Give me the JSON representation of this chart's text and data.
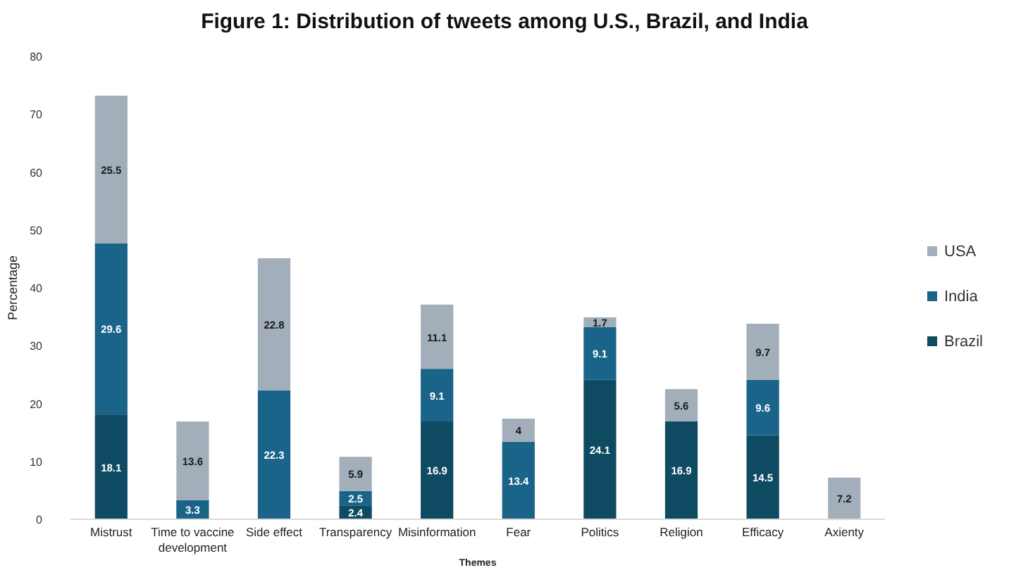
{
  "chart_data": {
    "type": "bar",
    "stacked": true,
    "title": "Figure 1: Distribution of tweets among U.S., Brazil, and India",
    "xlabel": "Themes",
    "ylabel": "Percentage",
    "categories": [
      "Mistrust",
      "Time to vaccine development",
      "Side effect",
      "Transparency",
      "Misinformation",
      "Fear",
      "Politics",
      "Religion",
      "Efficacy",
      "Axienty"
    ],
    "series": [
      {
        "name": "Brazil",
        "color": "#0f4a63",
        "values": [
          18.1,
          null,
          null,
          2.4,
          16.9,
          null,
          24.1,
          16.9,
          14.5,
          null
        ]
      },
      {
        "name": "India",
        "color": "#1a6389",
        "values": [
          29.6,
          3.3,
          22.3,
          2.5,
          9.1,
          13.4,
          9.1,
          null,
          9.6,
          null
        ]
      },
      {
        "name": "USA",
        "color": "#a2afbb",
        "values": [
          25.5,
          13.6,
          22.8,
          5.9,
          11.1,
          4,
          1.7,
          5.6,
          9.7,
          7.2
        ]
      }
    ],
    "ylim": [
      0,
      80
    ],
    "yticks": [
      0,
      10,
      20,
      30,
      40,
      50,
      60,
      70,
      80
    ],
    "grid": false,
    "legend": "right",
    "data_labels": true
  }
}
